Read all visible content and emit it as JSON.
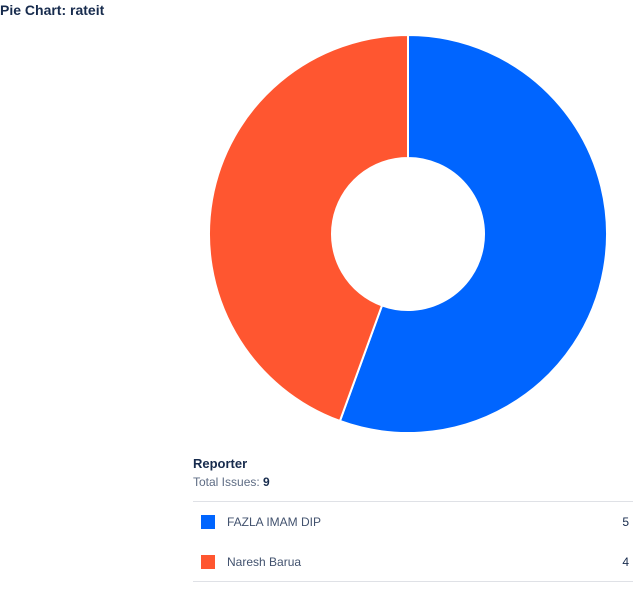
{
  "header": {
    "title": "Pie Chart: rateit"
  },
  "summary": {
    "heading": "Reporter",
    "total_label": "Total Issues:",
    "total_value": "9"
  },
  "legend": [
    {
      "name": "FAZLA IMAM DIP",
      "count": "5",
      "color": "#0065ff"
    },
    {
      "name": "Naresh Barua",
      "count": "4",
      "color": "#ff5630"
    }
  ],
  "chart_data": {
    "type": "pie",
    "style": "donut",
    "title": "Pie Chart: rateit",
    "categories": [
      "FAZLA IMAM DIP",
      "Naresh Barua"
    ],
    "values": [
      5,
      4
    ],
    "colors": [
      "#0065ff",
      "#ff5630"
    ],
    "legend_title": "Reporter",
    "total": 9,
    "legend_placement": "bottom"
  }
}
